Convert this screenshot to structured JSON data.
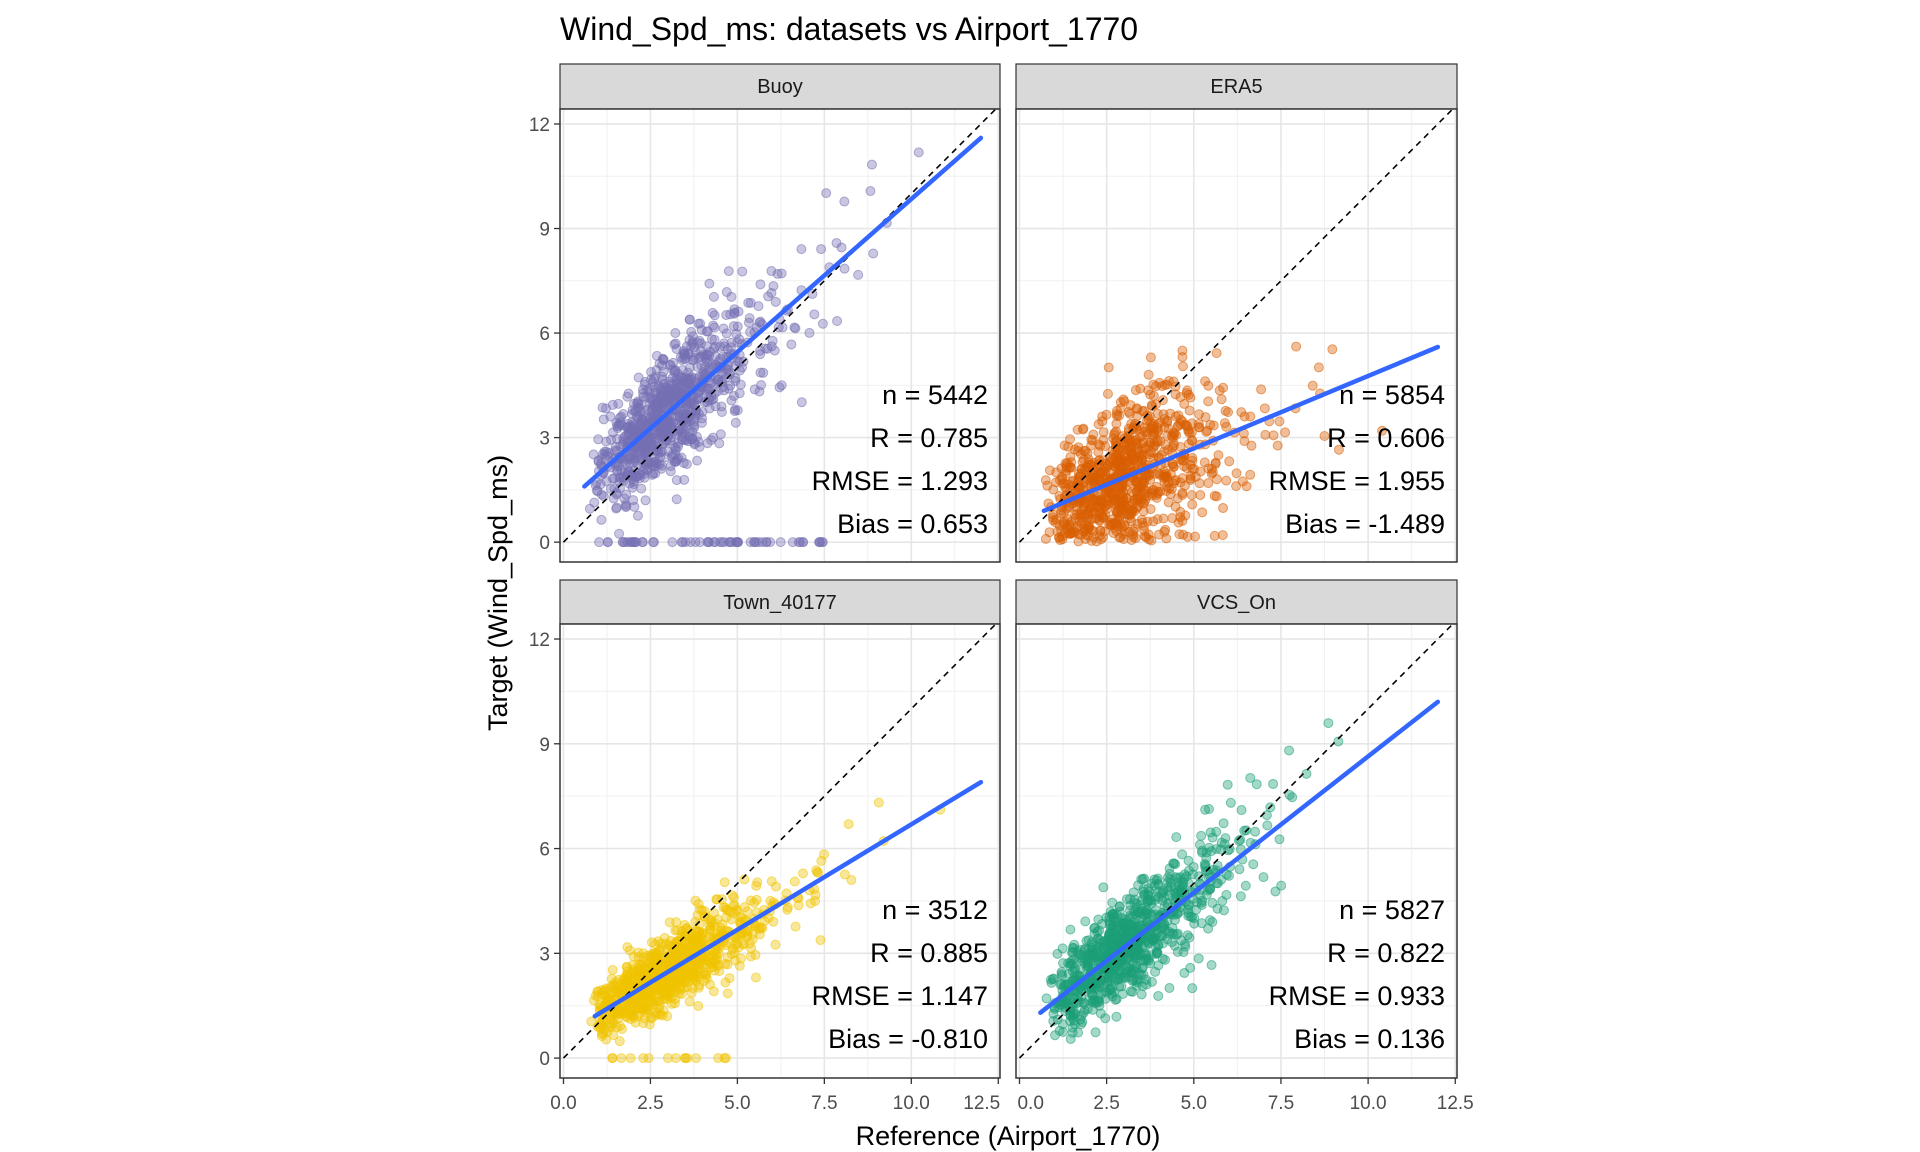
{
  "chart_data": {
    "type": "scatter",
    "title": "Wind_Spd_ms: datasets vs Airport_1770",
    "xlabel": "Reference (Airport_1770)",
    "ylabel": "Target (Wind_Spd_ms)",
    "xlim": [
      -0.1,
      12.55
    ],
    "ylim": [
      -0.57,
      12.43
    ],
    "xticks": [
      "0.0",
      "2.5",
      "5.0",
      "7.5",
      "10.0",
      "12.5"
    ],
    "xtick_values": [
      0,
      2.5,
      5,
      7.5,
      10,
      12.5
    ],
    "yticks": [
      "0",
      "3",
      "6",
      "9",
      "12"
    ],
    "ytick_values": [
      0,
      3,
      6,
      9,
      12
    ],
    "grid": true,
    "reference_line": "1:1 dashed",
    "fit_line_color": "#3366ff",
    "panels": [
      {
        "name": "Buoy",
        "color": "#7570b3",
        "n": "n = 5442",
        "r": "R = 0.785",
        "rmse": "RMSE = 1.293",
        "bias": "Bias = 0.653",
        "fit": {
          "x": [
            0.6,
            12.0
          ],
          "y": [
            1.6,
            11.6
          ]
        }
      },
      {
        "name": "ERA5",
        "color": "#d95f02",
        "n": "n = 5854",
        "r": "R = 0.606",
        "rmse": "RMSE = 1.955",
        "bias": "Bias = -1.489",
        "fit": {
          "x": [
            0.7,
            12.0
          ],
          "y": [
            0.9,
            5.6
          ]
        }
      },
      {
        "name": "Town_40177",
        "color": "#f0c400",
        "n": "n = 3512",
        "r": "R = 0.885",
        "rmse": "RMSE = 1.147",
        "bias": "Bias = -0.810",
        "fit": {
          "x": [
            0.9,
            12.0
          ],
          "y": [
            1.2,
            7.9
          ]
        }
      },
      {
        "name": "VCS_On",
        "color": "#1b9e77",
        "n": "n = 5827",
        "r": "R = 0.822",
        "rmse": "RMSE = 0.933",
        "bias": "Bias = 0.136",
        "fit": {
          "x": [
            0.6,
            12.0
          ],
          "y": [
            1.3,
            10.2
          ]
        }
      }
    ]
  }
}
